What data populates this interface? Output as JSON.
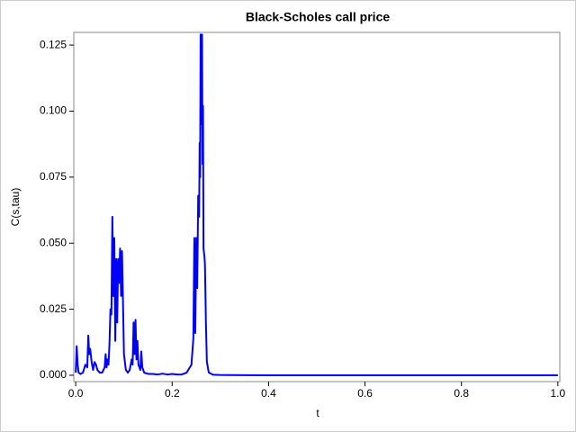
{
  "chart_data": {
    "type": "line",
    "title": "Black-Scholes call price",
    "x_label": "t",
    "y_label": "C(s,tau)",
    "xlim": [
      -0.004,
      1.004
    ],
    "ylim": [
      -0.0024,
      0.1298
    ],
    "xticks": [
      {
        "value": 0,
        "label": "0.0"
      },
      0.2,
      0.4,
      0.6,
      0.8,
      {
        "value": 1,
        "label": "1.0"
      }
    ],
    "yticks": [
      {
        "value": 0,
        "label": "0.000"
      },
      0.025,
      {
        "value": 0.05,
        "label": "0.050"
      },
      0.075,
      {
        "value": 0.1,
        "label": "0.100"
      },
      0.125
    ],
    "series": [
      {
        "color": "#0000ff",
        "x": [
          0.0,
          0.002,
          0.004,
          0.006,
          0.01,
          0.015,
          0.02,
          0.024,
          0.026,
          0.028,
          0.03,
          0.033,
          0.036,
          0.039,
          0.042,
          0.045,
          0.05,
          0.055,
          0.06,
          0.062,
          0.064,
          0.066,
          0.068,
          0.07,
          0.072,
          0.074,
          0.076,
          0.078,
          0.08,
          0.082,
          0.084,
          0.086,
          0.088,
          0.09,
          0.092,
          0.094,
          0.096,
          0.098,
          0.1,
          0.104,
          0.108,
          0.112,
          0.116,
          0.118,
          0.12,
          0.122,
          0.124,
          0.126,
          0.128,
          0.13,
          0.134,
          0.136,
          0.138,
          0.142,
          0.15,
          0.16,
          0.17,
          0.18,
          0.19,
          0.2,
          0.21,
          0.22,
          0.23,
          0.24,
          0.244,
          0.246,
          0.248,
          0.25,
          0.252,
          0.254,
          0.256,
          0.257,
          0.258,
          0.259,
          0.261,
          0.262,
          0.263,
          0.264,
          0.265,
          0.267,
          0.268,
          0.27,
          0.272,
          0.276,
          0.285,
          0.3,
          0.4,
          0.6,
          0.8,
          1.0
        ],
        "values": [
          0.001,
          0.011,
          0.004,
          0.001,
          0.0005,
          0.001,
          0.004,
          0.003,
          0.015,
          0.008,
          0.01,
          0.005,
          0.002,
          0.005,
          0.004,
          0.002,
          0.001,
          0.001,
          0.003,
          0.008,
          0.003,
          0.006,
          0.004,
          0.012,
          0.025,
          0.023,
          0.06,
          0.03,
          0.052,
          0.013,
          0.044,
          0.02,
          0.044,
          0.035,
          0.048,
          0.03,
          0.047,
          0.028,
          0.008,
          0.002,
          0.001,
          0.002,
          0.006,
          0.004,
          0.02,
          0.008,
          0.021,
          0.006,
          0.013,
          0.004,
          0.002,
          0.009,
          0.003,
          0.001,
          0.0005,
          0.0005,
          0.0003,
          0.0006,
          0.0003,
          0.0005,
          0.0003,
          0.0003,
          0.001,
          0.004,
          0.014,
          0.052,
          0.016,
          0.052,
          0.033,
          0.068,
          0.06,
          0.088,
          0.075,
          0.129,
          0.095,
          0.129,
          0.08,
          0.102,
          0.048,
          0.045,
          0.042,
          0.02,
          0.005,
          0.001,
          0.0002,
          0.0001,
          0,
          0,
          0,
          0
        ]
      }
    ]
  }
}
